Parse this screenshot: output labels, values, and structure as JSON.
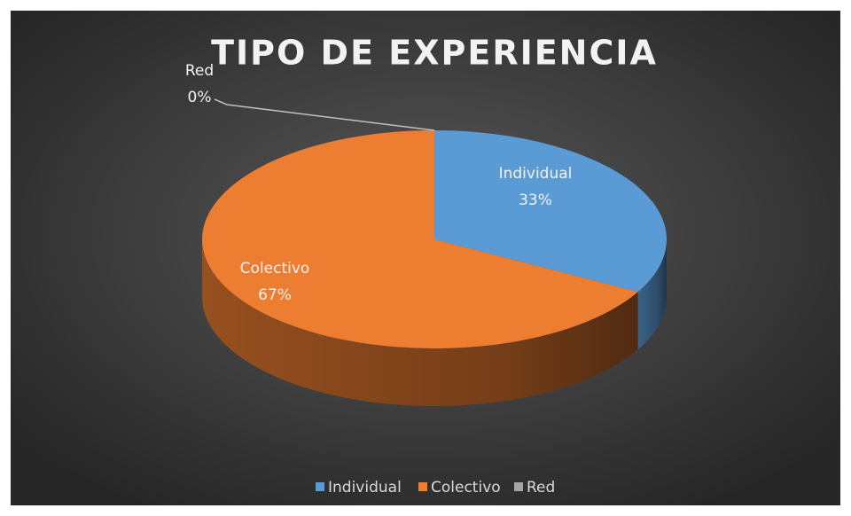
{
  "chart_data": {
    "type": "pie",
    "title": "TIPO DE EXPERIENCIA",
    "categories": [
      "Individual",
      "Colectivo",
      "Red"
    ],
    "values": [
      33,
      67,
      0
    ],
    "value_labels": [
      "33%",
      "67%",
      "0%"
    ],
    "colors": [
      "#5b9bd5",
      "#ed7d31",
      "#a5a5a5"
    ],
    "legend": "bottom"
  }
}
